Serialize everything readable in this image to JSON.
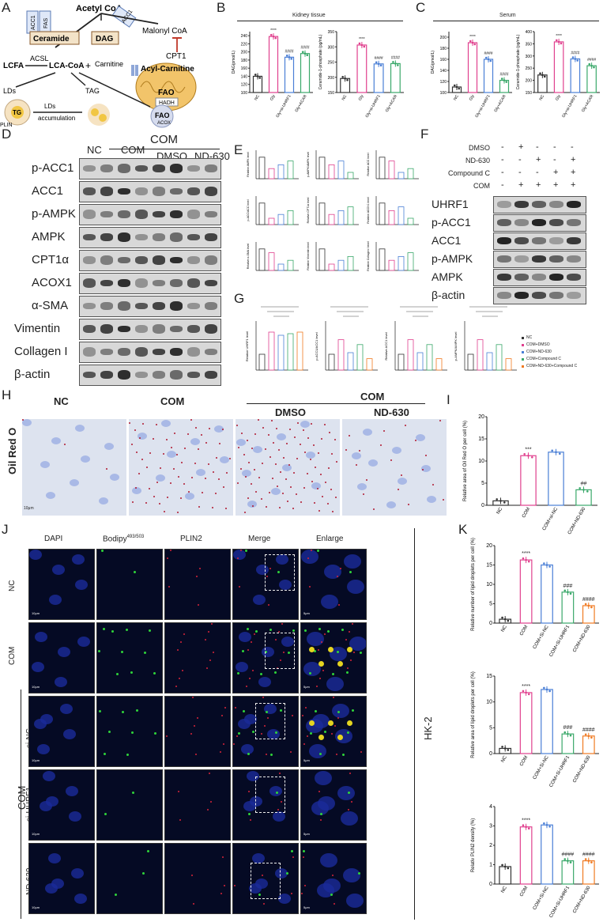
{
  "panels": {
    "A": "A",
    "B": "B",
    "C": "C",
    "D": "D",
    "E": "E",
    "F": "F",
    "G": "G",
    "H": "H",
    "I": "I",
    "J": "J",
    "K": "K"
  },
  "schematic": {
    "acetyl_coa": "Acetyl CoA",
    "acc1": "ACC1",
    "fas": "FAS",
    "acc1b": "ACC1",
    "malonyl": "Malonyl CoA",
    "ceramide": "Ceramide",
    "dag": "DAG",
    "cpt1": "CPT1",
    "lcfa": "LCFA",
    "acsl": "ACSL",
    "lcacoa": "LCA-CoA",
    "plus": "+",
    "carnitine": "Carnitine",
    "acylcarnitine": "Acyl-Carnitine",
    "fao": "FAO",
    "hadh": "HADH",
    "lds": "LDs",
    "tag": "TAG",
    "tg": "TG",
    "plin": "PLIN",
    "lds_acc1": "LDs",
    "lds_acc2": "accumulation",
    "fao2": "FAO",
    "acox": "ACOX"
  },
  "panelB": {
    "header": "Kidney tissue",
    "chart_data": [
      {
        "type": "bar",
        "ylabel": "DAG(pmol/L)",
        "categories": [
          "NC",
          "Gly",
          "Gly+si-UHRF1",
          "Gly+ACAR"
        ],
        "values": [
          140,
          238,
          187,
          196
        ],
        "ylim": [
          100,
          250
        ],
        "ticks": [
          "100",
          "120",
          "140",
          "160",
          "180",
          "200",
          "220",
          "240"
        ],
        "stars": [
          "",
          "****",
          "####",
          "####"
        ]
      },
      {
        "type": "bar",
        "ylabel": "Ceramide-1-phosphate (pg/mL)",
        "categories": [
          "NC",
          "Gly",
          "Gly+si-UHRF1",
          "Gly+ACAR"
        ],
        "values": [
          196,
          306,
          244,
          245
        ],
        "ylim": [
          150,
          350
        ],
        "ticks": [
          "150",
          "200",
          "250",
          "300",
          "350"
        ],
        "stars": [
          "",
          "****",
          "####",
          "####"
        ]
      }
    ]
  },
  "panelC": {
    "header": "Serum",
    "chart_data": [
      {
        "type": "bar",
        "ylabel": "DAG(pmol/L)",
        "categories": [
          "NC",
          "Gly",
          "Gly+si-UHRF1",
          "Gly+ACAR"
        ],
        "values": [
          110,
          190,
          160,
          122
        ],
        "ylim": [
          100,
          210
        ],
        "ticks": [
          "100",
          "120",
          "140",
          "160",
          "180",
          "200"
        ],
        "stars": [
          "",
          "****",
          "####",
          "####"
        ]
      },
      {
        "type": "bar",
        "ylabel": "Ceramide-1-phosphate (pg/mL)",
        "categories": [
          "NC",
          "Gly",
          "Gly+si-UHRF1",
          "Gly+ACAR"
        ],
        "values": [
          222,
          358,
          288,
          260
        ],
        "ylim": [
          150,
          400
        ],
        "ticks": [
          "150",
          "200",
          "250",
          "300",
          "350",
          "400"
        ],
        "stars": [
          "",
          "****",
          "####",
          "####"
        ]
      }
    ]
  },
  "panelD": {
    "group": "COM",
    "cols": [
      "NC",
      "COM",
      "DMSO",
      "ND-630"
    ],
    "rows": [
      "p-ACC1",
      "ACC1",
      "p-AMPK",
      "AMPK",
      "CPT1α",
      "ACOX1",
      "α-SMA",
      "Vimentin",
      "Collagen I",
      "β-actin"
    ]
  },
  "panelF": {
    "conds": [
      "DMSO",
      "ND-630",
      "Compound C",
      "COM"
    ],
    "signs": [
      [
        "-",
        "+",
        "-",
        "-",
        "-"
      ],
      [
        "-",
        "-",
        "+",
        "-",
        "+"
      ],
      [
        "-",
        "-",
        "-",
        "+",
        "+"
      ],
      [
        "-",
        "+",
        "+",
        "+",
        "+"
      ]
    ],
    "rows": [
      "UHRF1",
      "p-ACC1",
      "ACC1",
      "p-AMPK",
      "AMPK",
      "β-actin"
    ]
  },
  "panelE": {
    "ylabels": [
      "Relative AMPK level",
      "p-AMPK/AMPK level",
      "Relative ACC level",
      "p-ACC/ACC level",
      "Relative CPT1α level",
      "Relative ACOX1 level",
      "Relative α-SMA level",
      "Relative Vimentin level",
      "Relative Collagen I level"
    ]
  },
  "panelG": {
    "ylabels": [
      "Relative UHRF1 level",
      "p-ACC1/ACC1 level",
      "Relative ACC1 level",
      "p-AMPK/AMPK level"
    ],
    "legend": [
      "NC",
      "COM+DMSO",
      "COM+ND-630",
      "COM+Compound C",
      "COM+ND-630+Compound C"
    ]
  },
  "panelH": {
    "cols": [
      "NC",
      "COM",
      "DMSO",
      "ND-630"
    ],
    "group": "COM",
    "rowlabel": "Oil Red O",
    "scale": "10μm"
  },
  "panelI": {
    "chart_data": {
      "type": "bar",
      "ylabel": "Relative area of Oil Red O per cell (%)",
      "categories": [
        "NC",
        "COM",
        "COM+si-NC",
        "COM+ND-630"
      ],
      "values": [
        1,
        11.2,
        12,
        3.5
      ],
      "ylim": [
        0,
        20
      ],
      "ticks": [
        "0",
        "5",
        "10",
        "15",
        "20"
      ],
      "stars": [
        "",
        "***",
        "",
        "##"
      ]
    }
  },
  "panelJ": {
    "cols": [
      "DAPI",
      "Bodipy",
      "PLIN2",
      "Merge",
      "Enlarge"
    ],
    "bodipy_sup": "493/503",
    "rows": [
      "NC",
      "COM",
      "si-NC",
      "si-UHRF1",
      "ND-630"
    ],
    "group": "COM",
    "cellline": "HK-2",
    "scale10": "10μm",
    "scale5": "5μm"
  },
  "panelK": {
    "chart_data": [
      {
        "type": "bar",
        "ylabel": "Relative number of lipid droplets per cell (%)",
        "categories": [
          "NC",
          "COM",
          "COM+Si-NC",
          "COM+Si-UHRF1",
          "COM+ND-630"
        ],
        "values": [
          1,
          16.3,
          15,
          8,
          4.5
        ],
        "ylim": [
          0,
          20
        ],
        "ticks": [
          "0",
          "5",
          "10",
          "15",
          "20"
        ],
        "stars": [
          "",
          "****",
          "",
          "###",
          "####"
        ]
      },
      {
        "type": "bar",
        "ylabel": "Relative area of lipid droplets per cell (%)",
        "categories": [
          "NC",
          "COM",
          "COM+Si-NC",
          "COM+Si-UHRF1",
          "COM+ND-630"
        ],
        "values": [
          1,
          11.8,
          12.4,
          3.8,
          3.4
        ],
        "ylim": [
          0,
          15
        ],
        "ticks": [
          "0",
          "5",
          "10",
          "15"
        ],
        "stars": [
          "",
          "****",
          "",
          "###",
          "####"
        ]
      },
      {
        "type": "bar",
        "ylabel": "Relativ PLIN2 density (%)",
        "categories": [
          "NC",
          "COM",
          "COM+Si-NC",
          "COM+Si-UHRF1",
          "COM+ND-630"
        ],
        "values": [
          0.9,
          2.95,
          3.05,
          1.2,
          1.2
        ],
        "ylim": [
          0,
          4
        ],
        "ticks": [
          "0",
          "1",
          "2",
          "3",
          "4"
        ],
        "stars": [
          "",
          "****",
          "",
          "####",
          "####"
        ]
      }
    ]
  },
  "colors": {
    "black": "#333333",
    "pink": "#e0408e",
    "blue": "#4a7fd6",
    "green": "#3aa86a",
    "orange": "#f07a22",
    "teal": "#3aa88a"
  }
}
